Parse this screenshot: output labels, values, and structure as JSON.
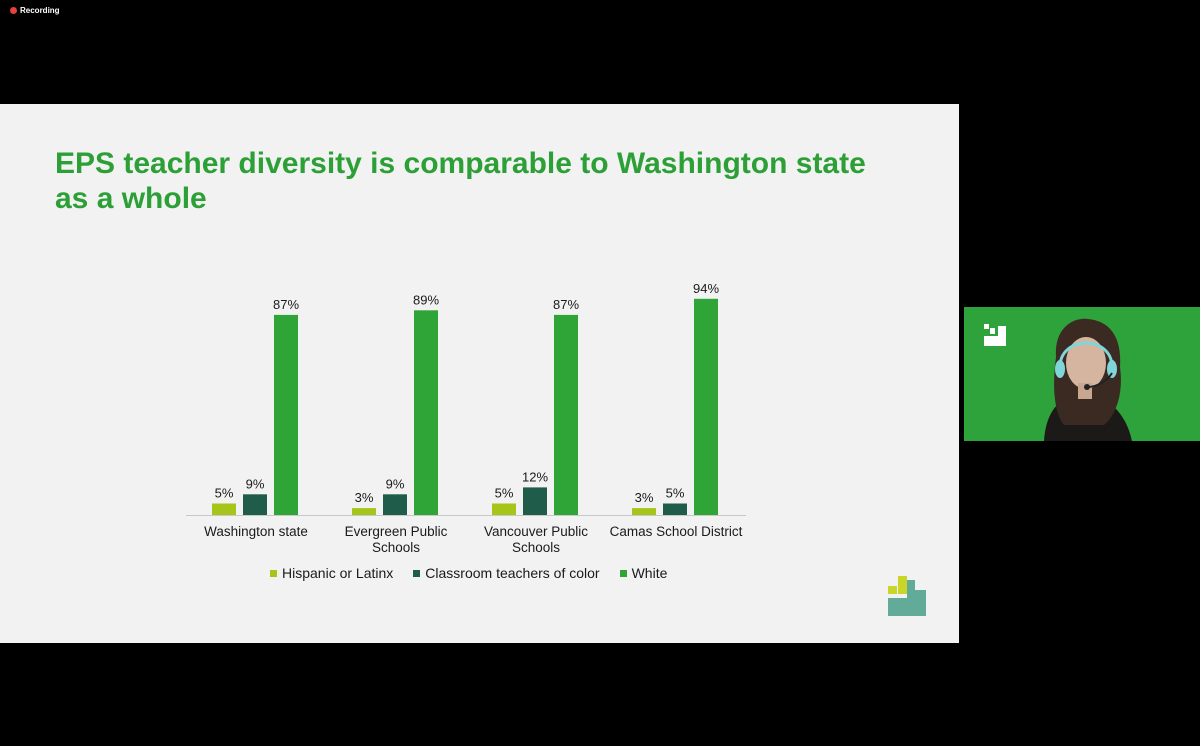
{
  "recording": {
    "label": "Recording"
  },
  "slide": {
    "title": "EPS teacher diversity is comparable to Washington state as a whole"
  },
  "legend": {
    "items": [
      {
        "label": "Hispanic or Latinx",
        "color": "#a6c51a"
      },
      {
        "label": "Classroom teachers of color",
        "color": "#1f5c4a"
      },
      {
        "label": "White",
        "color": "#30a537"
      }
    ]
  },
  "chart_data": {
    "type": "bar",
    "title": "EPS teacher diversity is comparable to Washington state as a whole",
    "categories": [
      [
        "Washington state"
      ],
      [
        "Evergreen Public",
        "Schools"
      ],
      [
        "Vancouver Public",
        "Schools"
      ],
      [
        "Camas School District"
      ]
    ],
    "series": [
      {
        "name": "Hispanic or Latinx",
        "color": "#a6c51a",
        "values": [
          5,
          3,
          5,
          3
        ]
      },
      {
        "name": "Classroom teachers of color",
        "color": "#1f5c4a",
        "values": [
          9,
          9,
          12,
          5
        ]
      },
      {
        "name": "White",
        "color": "#30a537",
        "values": [
          87,
          89,
          87,
          94
        ]
      }
    ],
    "value_suffix": "%",
    "ylim": [
      0,
      100
    ],
    "xlabel": "",
    "ylabel": "",
    "legend_position": "bottom",
    "grid": false
  },
  "colors": {
    "title": "#2ca036",
    "video_background": "#2fa33b",
    "logo_light": "#c7d628",
    "logo_dark": "#62ab98"
  },
  "icons": {
    "recording": "red-dot-icon",
    "logo": "evergreen-logo-icon"
  }
}
